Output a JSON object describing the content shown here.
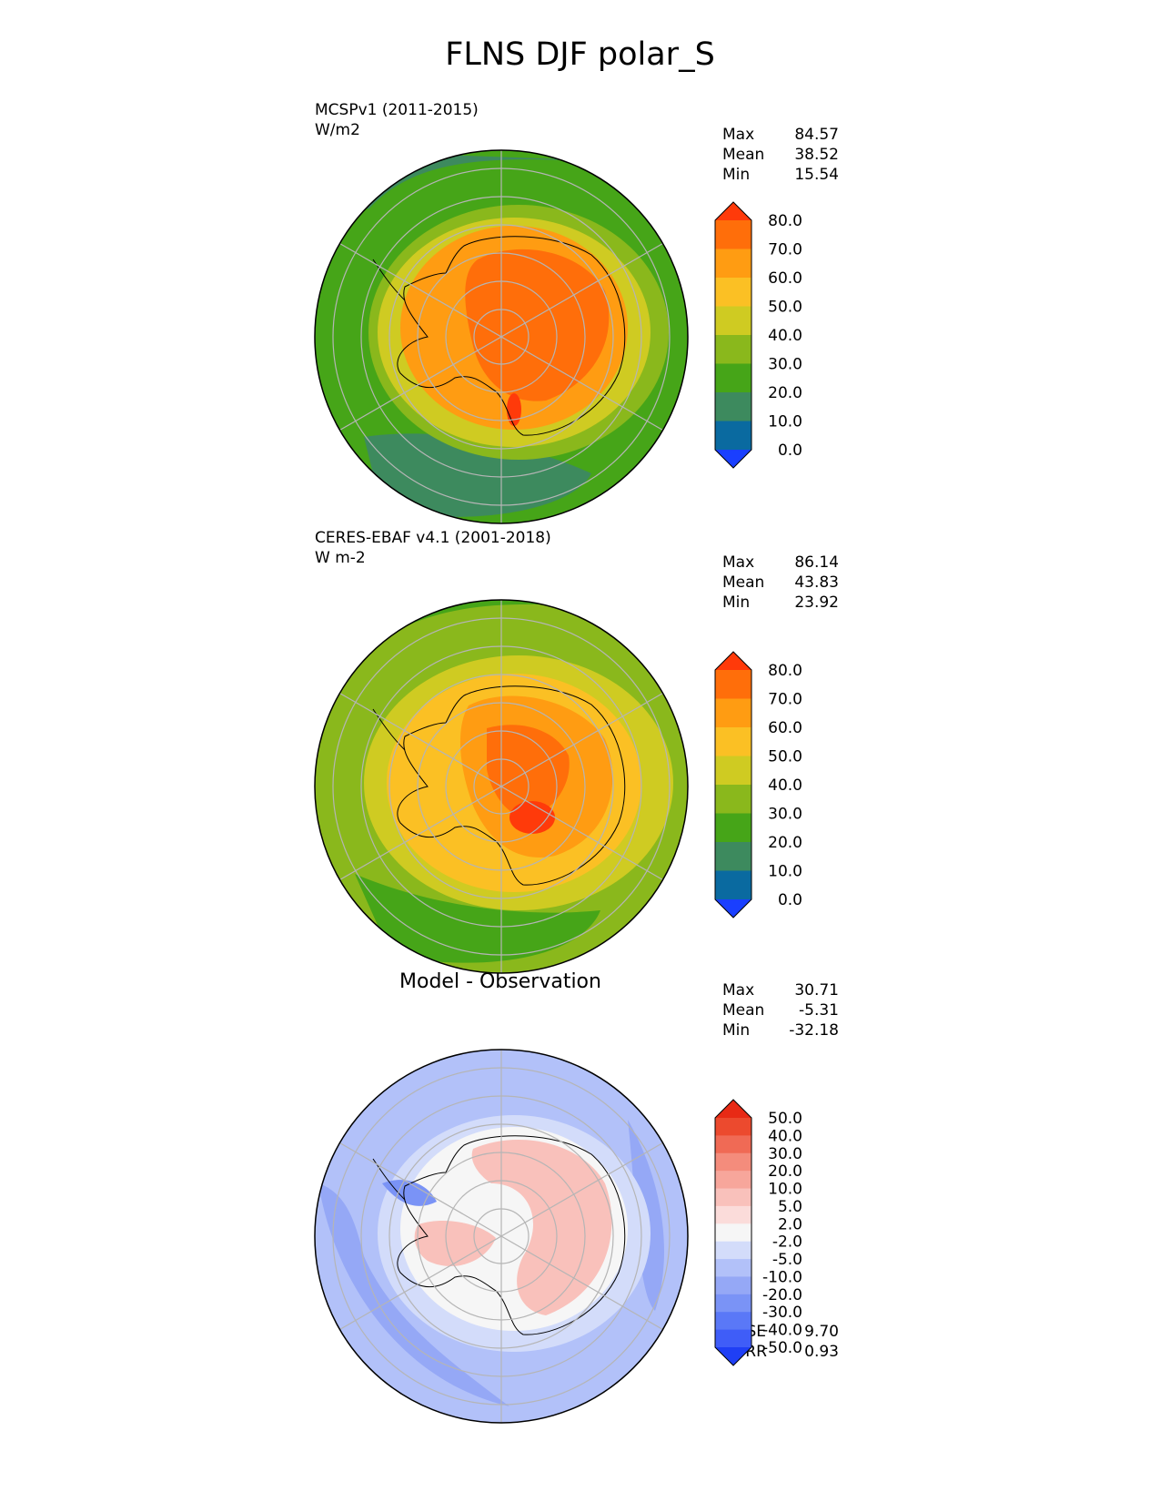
{
  "title": "FLNS DJF polar_S",
  "panels": [
    {
      "name": "test",
      "title_line1": "MCSPv1 (2011-2015)",
      "title_line2": "W/m2",
      "stats": [
        {
          "label": "Max",
          "value": "84.57"
        },
        {
          "label": "Mean",
          "value": "38.52"
        },
        {
          "label": "Min",
          "value": "15.54"
        }
      ],
      "colorbar_ticks": [
        "80.0",
        "70.0",
        "60.0",
        "50.0",
        "40.0",
        "30.0",
        "20.0",
        "10.0",
        "0.0"
      ]
    },
    {
      "name": "reference",
      "title_line1": "CERES-EBAF v4.1 (2001-2018)",
      "title_line2": "W m-2",
      "stats": [
        {
          "label": "Max",
          "value": "86.14"
        },
        {
          "label": "Mean",
          "value": "43.83"
        },
        {
          "label": "Min",
          "value": "23.92"
        }
      ],
      "colorbar_ticks": [
        "80.0",
        "70.0",
        "60.0",
        "50.0",
        "40.0",
        "30.0",
        "20.0",
        "10.0",
        "0.0"
      ]
    },
    {
      "name": "difference",
      "title": "Model - Observation",
      "stats": [
        {
          "label": "Max",
          "value": "30.71"
        },
        {
          "label": "Mean",
          "value": "-5.31"
        },
        {
          "label": "Min",
          "value": "-32.18"
        }
      ],
      "colorbar_ticks": [
        "50.0",
        "40.0",
        "30.0",
        "20.0",
        "10.0",
        "5.0",
        "2.0",
        "-2.0",
        "-5.0",
        "-10.0",
        "-20.0",
        "-30.0",
        "-40.0",
        "-50.0"
      ],
      "metrics": [
        {
          "label": "RMSE",
          "value": "9.70"
        },
        {
          "label": "CORR",
          "value": "0.93"
        }
      ]
    }
  ],
  "colors": {
    "field_levels": [
      "#1a3fff",
      "#0a6aa0",
      "#3d8a5e",
      "#46a518",
      "#8ab81c",
      "#cfcb22",
      "#fbc024",
      "#ff9c12",
      "#ff6e0a",
      "#ff3a0a"
    ],
    "diff_levels": [
      "#1f3ff5",
      "#3f5df8",
      "#5a78f7",
      "#7a93f6",
      "#95a8f6",
      "#b2c1f9",
      "#d3dcfa",
      "#f6f6f6",
      "#fbdcda",
      "#f9c1bb",
      "#f7a69b",
      "#f48c7c",
      "#f06a55",
      "#ec4a2e",
      "#e82a15"
    ],
    "grid": "#b5b5b5",
    "coast": "#000000"
  }
}
